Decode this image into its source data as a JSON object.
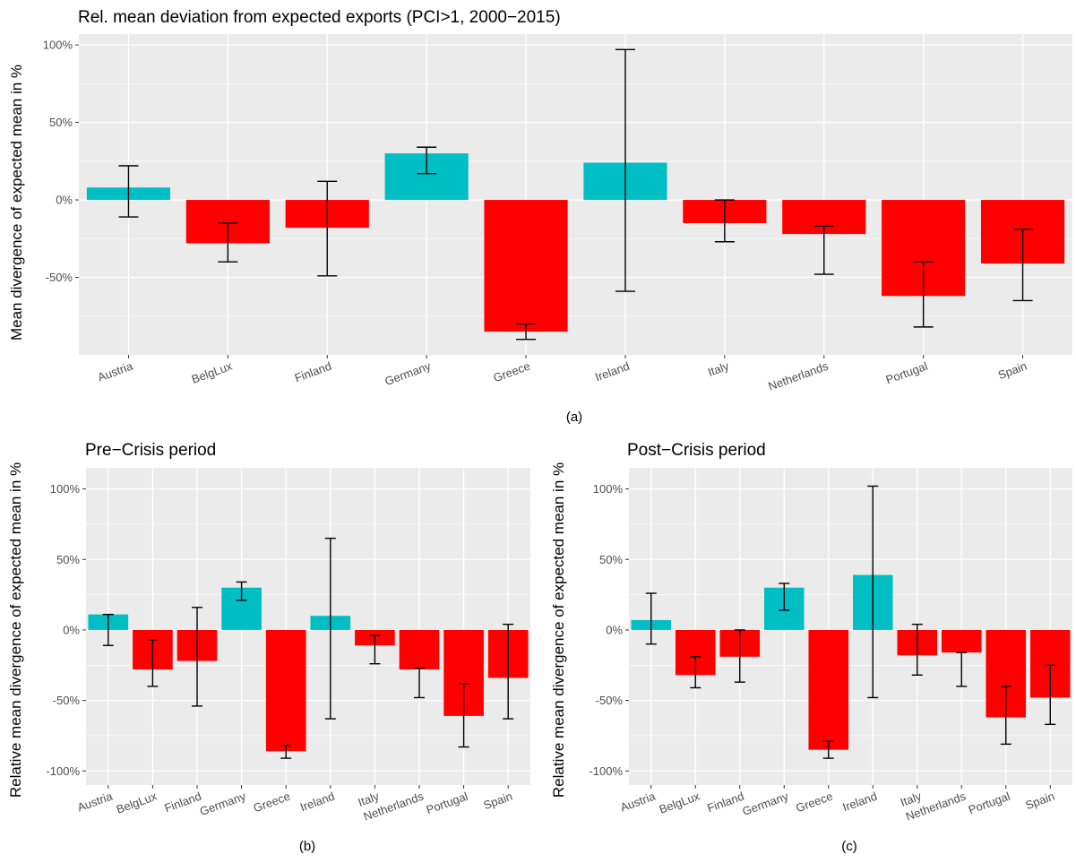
{
  "colors": {
    "positive": "#00BFC4",
    "negative": "#FF0000",
    "panel": "#EBEBEB",
    "grid": "#FFFFFF",
    "errorbar": "#000000"
  },
  "chart_data": [
    {
      "type": "bar",
      "title": "Rel. mean deviation from expected exports (PCI>1, 2000−2015)",
      "ylabel": "Mean divergence of expected mean in %",
      "caption": "(a)",
      "categories": [
        "Austria",
        "BelgLux",
        "Finland",
        "Germany",
        "Greece",
        "Ireland",
        "Italy",
        "Netherlands",
        "Portugal",
        "Spain"
      ],
      "values": [
        8,
        -28,
        -18,
        30,
        -85,
        24,
        -15,
        -22,
        -62,
        -41
      ],
      "error_low": [
        -11,
        -40,
        -49,
        17,
        -90,
        -59,
        -27,
        -48,
        -82,
        -65
      ],
      "error_high": [
        22,
        -15,
        12,
        34,
        -80,
        97,
        0,
        -17,
        -40,
        -19
      ],
      "ylim": [
        -100,
        107
      ],
      "yticks": [
        100,
        50,
        0,
        -50
      ],
      "ytick_labels": [
        "100%",
        "50%",
        "0%",
        "-50%"
      ],
      "grid": true
    },
    {
      "type": "bar",
      "title": "Pre−Crisis period",
      "ylabel": "Relative mean divergence of expected mean in %",
      "caption": "(b)",
      "categories": [
        "Austria",
        "BelgLux",
        "Finland",
        "Germany",
        "Greece",
        "Ireland",
        "Italy",
        "Netherlands",
        "Portugal",
        "Spain"
      ],
      "values": [
        11,
        -28,
        -22,
        30,
        -86,
        10,
        -11,
        -28,
        -61,
        -34
      ],
      "error_low": [
        -11,
        -40,
        -54,
        21,
        -91,
        -63,
        -24,
        -48,
        -83,
        -63
      ],
      "error_high": [
        11,
        -7,
        16,
        34,
        -82,
        65,
        -4,
        -27,
        -38,
        4
      ],
      "ylim": [
        -110,
        115
      ],
      "yticks": [
        100,
        50,
        0,
        -50,
        -100
      ],
      "ytick_labels": [
        "100%",
        "50%",
        "0%",
        "-50%",
        "-100%"
      ],
      "grid": true
    },
    {
      "type": "bar",
      "title": "Post−Crisis period",
      "ylabel": "Relative mean divergence of expected mean in %",
      "caption": "(c)",
      "categories": [
        "Austria",
        "BelgLux",
        "Finland",
        "Germany",
        "Greece",
        "Ireland",
        "Italy",
        "Netherlands",
        "Portugal",
        "Spain"
      ],
      "values": [
        7,
        -32,
        -19,
        30,
        -85,
        39,
        -18,
        -16,
        -62,
        -48
      ],
      "error_low": [
        -10,
        -41,
        -37,
        14,
        -91,
        -48,
        -32,
        -40,
        -81,
        -67
      ],
      "error_high": [
        26,
        -19,
        0,
        33,
        -79,
        102,
        4,
        -16,
        -40,
        -25
      ],
      "ylim": [
        -110,
        115
      ],
      "yticks": [
        100,
        50,
        0,
        -50,
        -100
      ],
      "ytick_labels": [
        "100%",
        "50%",
        "0%",
        "-50%",
        "-100%"
      ],
      "grid": true
    }
  ]
}
